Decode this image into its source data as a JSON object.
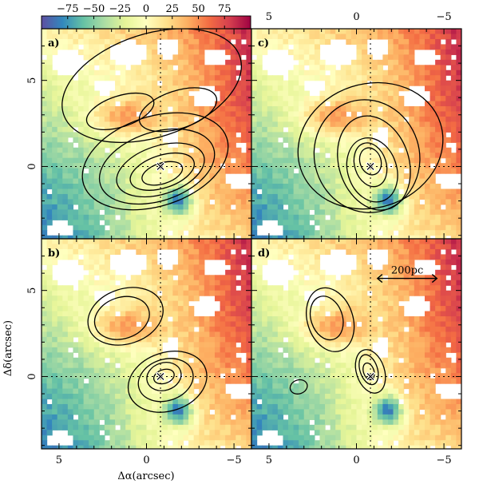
{
  "chart_data": {
    "type": "heatmap",
    "colorbar": {
      "ticks": [
        "−75",
        "−50",
        "−25",
        "0",
        "25",
        "50",
        "75"
      ],
      "values": [
        -75,
        -50,
        -25,
        0,
        25,
        50,
        75
      ],
      "range": [
        -100,
        100
      ],
      "colors": [
        "#5e4fa2",
        "#3288bd",
        "#66c2a5",
        "#abdda4",
        "#e6f598",
        "#ffffbf",
        "#fee08b",
        "#fdae61",
        "#f46d43",
        "#d53e4f",
        "#9e0142"
      ]
    },
    "top_axis_ticks": {
      "labels": [
        "5",
        "0",
        "−5"
      ],
      "values": [
        5,
        0,
        -5
      ]
    },
    "x_axis": {
      "label": "Δα(arcsec)",
      "ticks": [
        "5",
        "0",
        "−5"
      ],
      "values": [
        5,
        0,
        -5
      ],
      "range": [
        6,
        -6
      ]
    },
    "y_axis": {
      "label": "Δδ(arcsec)",
      "ticks": [
        "5",
        "0"
      ],
      "values": [
        5,
        0
      ],
      "range": [
        -4.2,
        8
      ]
    },
    "panels": [
      {
        "id": "a",
        "label": "a)",
        "contour_peak": [
          -0.9,
          -0.5
        ]
      },
      {
        "id": "c",
        "label": "c)",
        "contour_peak": [
          -0.8,
          0.3
        ]
      },
      {
        "id": "b",
        "label": "b)",
        "contour_peak": [
          -1.0,
          0.0
        ]
      },
      {
        "id": "d",
        "label": "d)",
        "contour_peak": [
          -0.7,
          0.3
        ],
        "scalebar": "200pc"
      }
    ],
    "dashed_crosshair": {
      "x": -0.8,
      "y": 0
    },
    "marker": {
      "x": -0.8,
      "y": 0
    }
  }
}
